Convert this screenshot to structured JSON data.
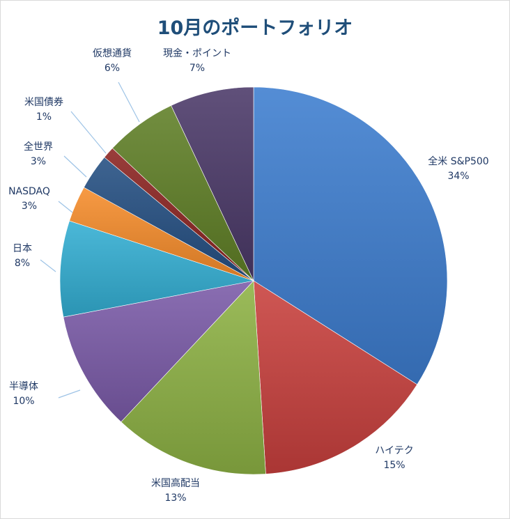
{
  "chart_data": {
    "type": "pie",
    "title": "10月のポートフォリオ",
    "slices": [
      {
        "label": "全米 S&P500",
        "value": 34,
        "pct_label": "34%",
        "color": "#3d7dcf"
      },
      {
        "label": "ハイテク",
        "value": 15,
        "pct_label": "15%",
        "color": "#c8403d"
      },
      {
        "label": "米国高配当",
        "value": 13,
        "pct_label": "13%",
        "color": "#8db244"
      },
      {
        "label": "半導体",
        "value": 10,
        "pct_label": "10%",
        "color": "#7a5aa8"
      },
      {
        "label": "日本",
        "value": 8,
        "pct_label": "8%",
        "color": "#32aed3"
      },
      {
        "label": "NASDAQ",
        "value": 3,
        "pct_label": "3%",
        "color": "#f68c2a"
      },
      {
        "label": "全世界",
        "value": 3,
        "pct_label": "3%",
        "color": "#244f82"
      },
      {
        "label": "米国債券",
        "value": 1,
        "pct_label": "1%",
        "color": "#8b2320"
      },
      {
        "label": "仮想通貨",
        "value": 6,
        "pct_label": "6%",
        "color": "#5f7f26"
      },
      {
        "label": "現金・ポイント",
        "value": 7,
        "pct_label": "7%",
        "color": "#4a3868"
      }
    ],
    "start_angle": "12 o'clock",
    "direction": "clockwise",
    "legend": "none"
  }
}
